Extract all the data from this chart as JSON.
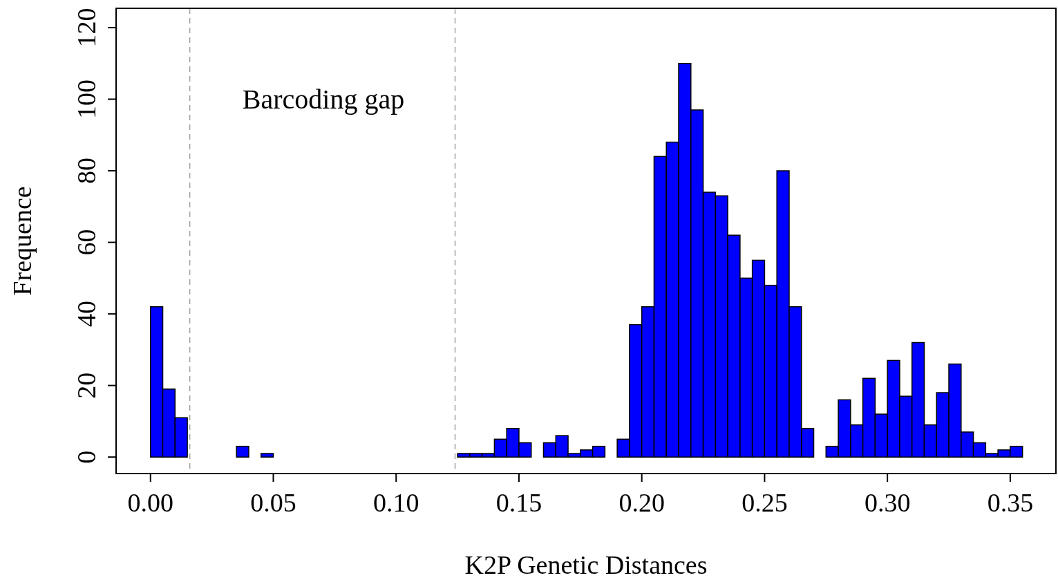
{
  "chart_data": {
    "type": "histogram",
    "xlabel": "K2P Genetic Distances",
    "ylabel": "Frequence",
    "color": "#0000ff",
    "bins": [
      0,
      0.005,
      0.01,
      0.015,
      0.02,
      0.025,
      0.03,
      0.035,
      0.04,
      0.045,
      0.05,
      0.055,
      0.06,
      0.065,
      0.07,
      0.075,
      0.08,
      0.085,
      0.09,
      0.095,
      0.1,
      0.105,
      0.11,
      0.115,
      0.12,
      0.125,
      0.13,
      0.135,
      0.14,
      0.145,
      0.15,
      0.155,
      0.16,
      0.165,
      0.17,
      0.175,
      0.18,
      0.185,
      0.19,
      0.195,
      0.2,
      0.205,
      0.21,
      0.215,
      0.22,
      0.225,
      0.23,
      0.235,
      0.24,
      0.245,
      0.25,
      0.255,
      0.26,
      0.265,
      0.27,
      0.275,
      0.28,
      0.285,
      0.29,
      0.295,
      0.3,
      0.305,
      0.31,
      0.315,
      0.32,
      0.325,
      0.33,
      0.335,
      0.34,
      0.345,
      0.35,
      0.355
    ],
    "values": [
      42,
      19,
      11,
      0,
      0,
      0,
      0,
      3,
      0,
      1,
      0,
      0,
      0,
      0,
      0,
      0,
      0,
      0,
      0,
      0,
      0,
      0,
      0,
      0,
      0,
      1,
      1,
      1,
      5,
      8,
      4,
      0,
      4,
      6,
      1,
      2,
      3,
      0,
      5,
      37,
      42,
      84,
      88,
      110,
      97,
      74,
      73,
      62,
      50,
      55,
      48,
      80,
      42,
      8,
      0,
      3,
      16,
      9,
      22,
      12,
      27,
      17,
      32,
      9,
      18,
      26,
      7,
      4,
      1,
      2,
      3
    ],
    "xlim": [
      -0.014,
      0.3686
    ],
    "ylim": [
      -4.6,
      125.4
    ],
    "xticks": [
      {
        "value": 0,
        "label": "0.00"
      },
      {
        "value": 0.05,
        "label": "0.05"
      },
      {
        "value": 0.1,
        "label": "0.10"
      },
      {
        "value": 0.15,
        "label": "0.15"
      },
      {
        "value": 0.2,
        "label": "0.20"
      },
      {
        "value": 0.25,
        "label": "0.25"
      },
      {
        "value": 0.3,
        "label": "0.30"
      },
      {
        "value": 0.35,
        "label": "0.35"
      }
    ],
    "yticks": [
      0,
      20,
      40,
      60,
      80,
      100,
      120
    ],
    "ref_lines": [
      {
        "axis": "x",
        "value": 0.016,
        "color": "#a0a0a0",
        "line_style": "dashed"
      },
      {
        "axis": "x",
        "value": 0.124,
        "color": "#a0a0a0",
        "line_style": "dashed"
      }
    ],
    "annotations": [
      "Barcoding gap"
    ]
  }
}
